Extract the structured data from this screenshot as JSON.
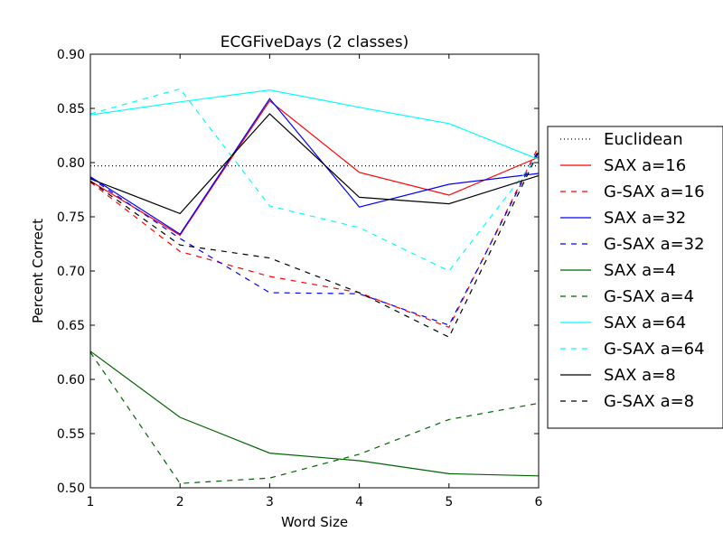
{
  "chart_data": {
    "type": "line",
    "title": "ECGFiveDays (2 classes)",
    "xlabel": "Word Size",
    "ylabel": "Percent Correct",
    "xlim": [
      1,
      6
    ],
    "ylim": [
      0.5,
      0.9
    ],
    "xticks": [
      "1",
      "2",
      "3",
      "4",
      "5",
      "6"
    ],
    "yticks": [
      "0.50",
      "0.55",
      "0.60",
      "0.65",
      "0.70",
      "0.75",
      "0.80",
      "0.85",
      "0.90"
    ],
    "x": [
      1,
      2,
      3,
      4,
      5,
      6
    ],
    "grid": false,
    "legend_position": "right",
    "series": [
      {
        "name": "Euclidean",
        "color": "#000000",
        "style": "dotted",
        "values": [
          0.797,
          0.797,
          0.797,
          0.797,
          0.797,
          0.797
        ]
      },
      {
        "name": "SAX a=16",
        "color": "#ff0000",
        "style": "solid",
        "values": [
          0.783,
          0.733,
          0.857,
          0.791,
          0.77,
          0.805
        ]
      },
      {
        "name": "G-SAX a=16",
        "color": "#ff0000",
        "style": "dashed",
        "values": [
          0.782,
          0.718,
          0.695,
          0.68,
          0.648,
          0.815
        ]
      },
      {
        "name": "SAX a=32",
        "color": "#0000ff",
        "style": "solid",
        "values": [
          0.787,
          0.734,
          0.859,
          0.759,
          0.78,
          0.79
        ]
      },
      {
        "name": "G-SAX a=32",
        "color": "#0000ff",
        "style": "dashed",
        "values": [
          0.786,
          0.73,
          0.68,
          0.679,
          0.65,
          0.812
        ]
      },
      {
        "name": "SAX a=4",
        "color": "#006400",
        "style": "solid",
        "values": [
          0.626,
          0.565,
          0.532,
          0.525,
          0.513,
          0.511
        ]
      },
      {
        "name": "G-SAX a=4",
        "color": "#006400",
        "style": "dashed",
        "values": [
          0.625,
          0.504,
          0.509,
          0.531,
          0.563,
          0.578
        ]
      },
      {
        "name": "SAX a=64",
        "color": "#00ffff",
        "style": "solid",
        "values": [
          0.844,
          0.856,
          0.867,
          0.851,
          0.836,
          0.803
        ]
      },
      {
        "name": "G-SAX a=64",
        "color": "#00ffff",
        "style": "dashed",
        "values": [
          0.845,
          0.868,
          0.76,
          0.74,
          0.7,
          0.807
        ]
      },
      {
        "name": "SAX a=8",
        "color": "#000000",
        "style": "solid",
        "values": [
          0.785,
          0.753,
          0.845,
          0.768,
          0.762,
          0.788
        ]
      },
      {
        "name": "G-SAX a=8",
        "color": "#000000",
        "style": "dashed",
        "values": [
          0.783,
          0.724,
          0.712,
          0.68,
          0.639,
          0.81
        ]
      }
    ]
  }
}
